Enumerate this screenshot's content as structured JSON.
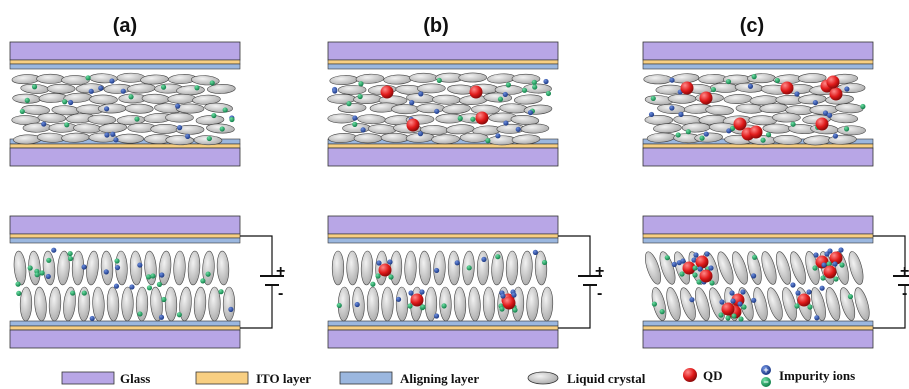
{
  "panels": [
    {
      "label": "(a)",
      "has_qd": false,
      "qd_count": 0
    },
    {
      "label": "(b)",
      "has_qd": true,
      "qd_count": 4
    },
    {
      "label": "(c)",
      "has_qd": true,
      "qd_count": 10
    }
  ],
  "battery": {
    "plus": "+",
    "minus": "-"
  },
  "impurity_symbols": {
    "positive": "+",
    "negative": "−"
  },
  "legend": {
    "glass": "Glass",
    "ito": "ITO layer",
    "aligning": "Aligning layer",
    "lc": "Liquid crystal",
    "qd": "QD",
    "impurity": "Impurity ions"
  },
  "colors": {
    "glass": "#b8a6e6",
    "ito": "#f8cf82",
    "aligning": "#9bb7df",
    "lc_fill": "#cbcbcb",
    "qd": "#e01a1a",
    "ion_positive": "#2a4fa8",
    "ion_negative": "#1aa35a"
  }
}
